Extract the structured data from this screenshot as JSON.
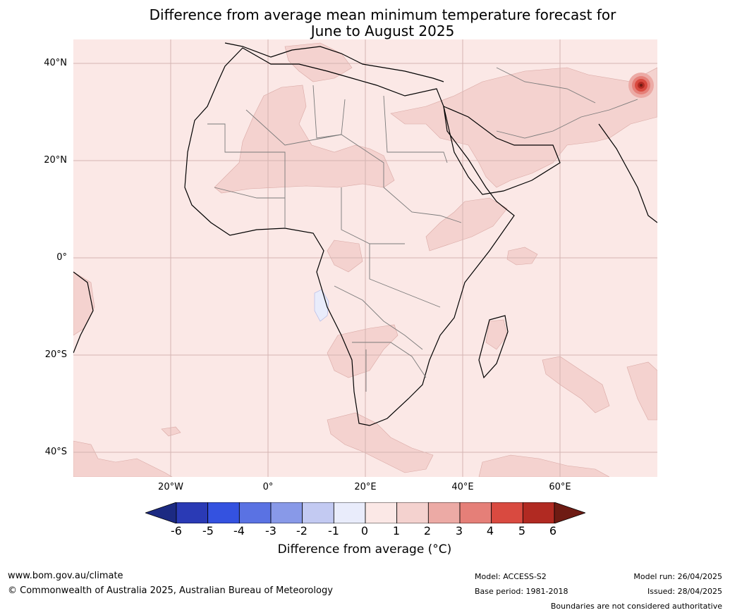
{
  "title": {
    "line1": "Difference from average mean minimum temperature forecast for",
    "line2": "June to August 2025"
  },
  "map": {
    "lat_labels": [
      "40°N",
      "20°N",
      "0°",
      "20°S",
      "40°S"
    ],
    "lon_labels": [
      "20°W",
      "0°",
      "20°E",
      "40°E",
      "60°E"
    ],
    "background_color": "#fbe8e6"
  },
  "colorbar": {
    "ticks": [
      "-6",
      "-5",
      "-4",
      "-3",
      "-2",
      "-1",
      "0",
      "1",
      "2",
      "3",
      "4",
      "5",
      "6"
    ],
    "colors": [
      "#1c2a82",
      "#2a3ab5",
      "#3452e0",
      "#5a72e3",
      "#8899e8",
      "#c3caf2",
      "#e9ecfb",
      "#fbe8e6",
      "#f4d2cf",
      "#ecaaa5",
      "#e57f78",
      "#d94a40",
      "#b12a22",
      "#6e1b13"
    ],
    "label": "Difference from average (°C)"
  },
  "footer": {
    "website": "www.bom.gov.au/climate",
    "copyright": "© Commonwealth of Australia 2025, Australian Bureau of Meteorology",
    "model": "Model: ACCESS-S2",
    "base_period": "Base period: 1981-2018",
    "model_run": "Model run: 26/04/2025",
    "issued": "Issued: 28/04/2025",
    "disclaimer": "Boundaries are not considered authoritative"
  }
}
